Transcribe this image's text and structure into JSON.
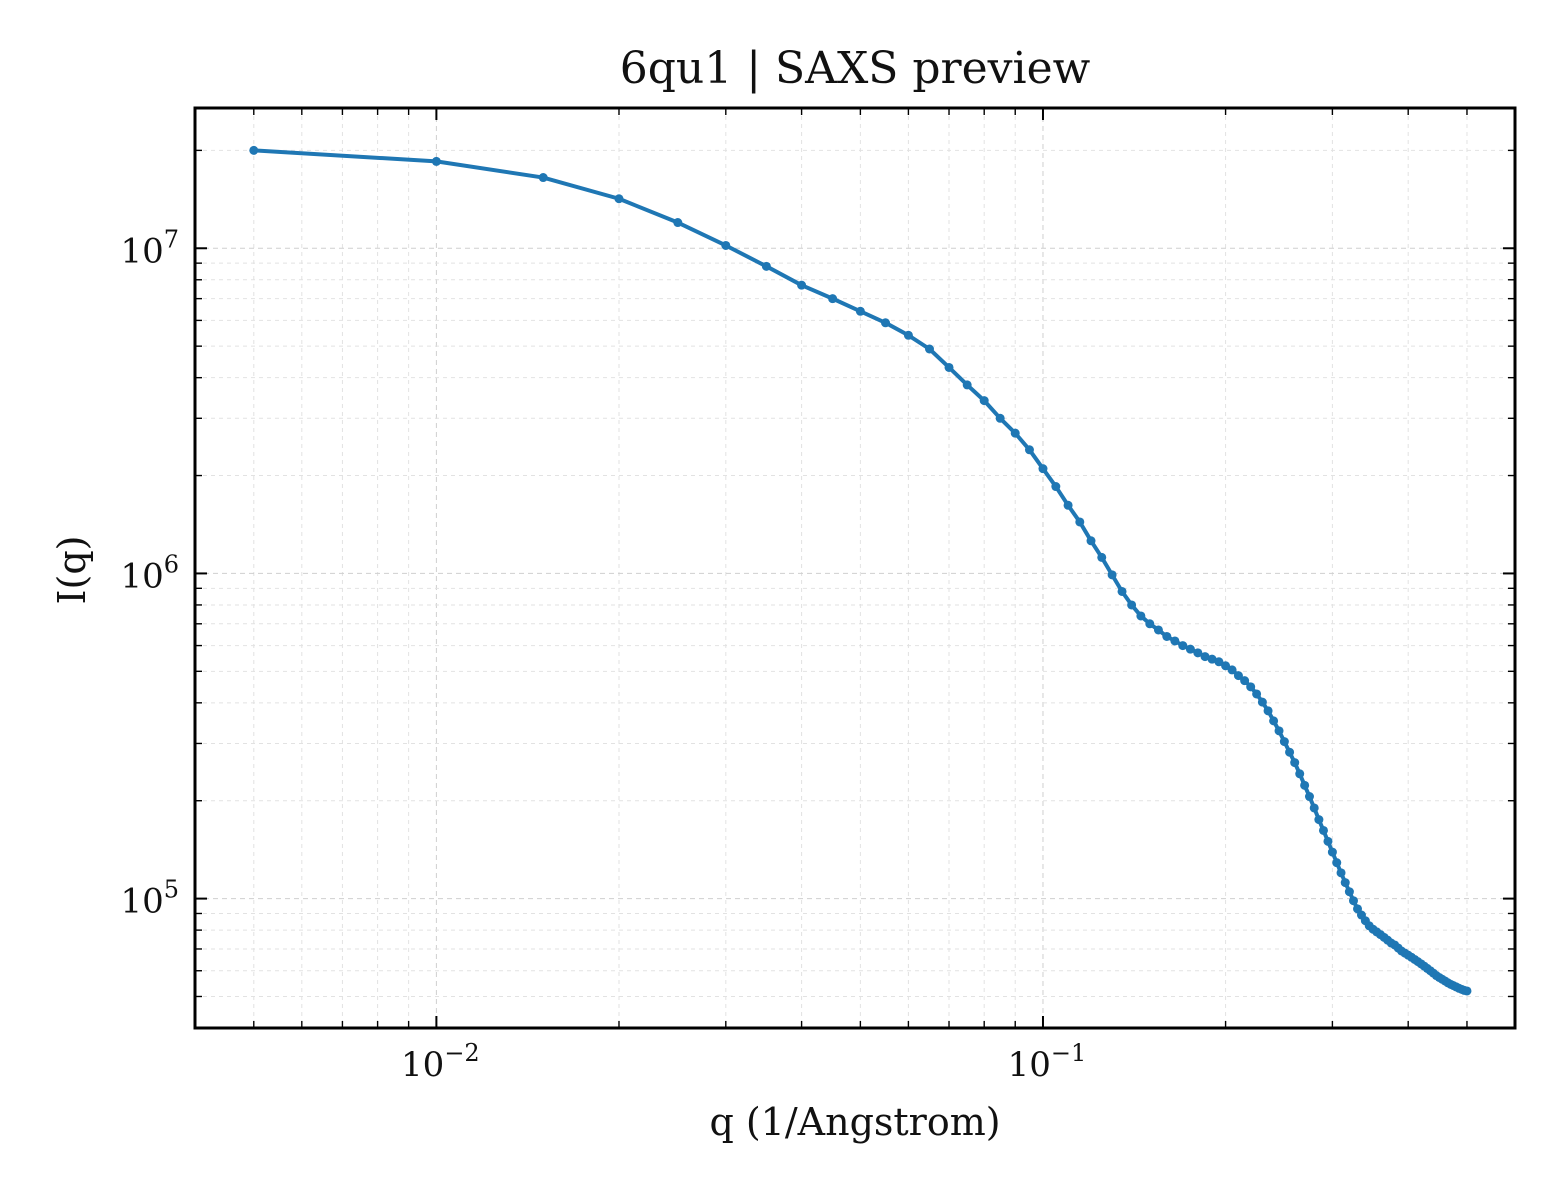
{
  "chart_data": {
    "type": "line",
    "title": "6qu1 | SAXS preview",
    "xlabel": "q (1/Angstrom)",
    "ylabel": "I(q)",
    "xscale": "log",
    "yscale": "log",
    "xlim": [
      0.004,
      0.6
    ],
    "ylim": [
      40000,
      27000000
    ],
    "grid": true,
    "color": "#1f77b4",
    "x_ticks": [
      {
        "value": 0.01,
        "base": "10",
        "exp": "−2"
      },
      {
        "value": 0.1,
        "base": "10",
        "exp": "−1"
      }
    ],
    "y_ticks": [
      {
        "value": 100000,
        "base": "10",
        "exp": "5"
      },
      {
        "value": 1000000,
        "base": "10",
        "exp": "6"
      },
      {
        "value": 10000000,
        "base": "10",
        "exp": "7"
      }
    ],
    "series": [
      {
        "x": [
          0.005,
          0.01,
          0.015,
          0.02,
          0.025,
          0.03,
          0.035,
          0.04,
          0.045,
          0.05,
          0.055,
          0.06,
          0.065,
          0.07,
          0.075,
          0.08,
          0.085,
          0.09,
          0.095,
          0.1,
          0.105,
          0.11,
          0.115,
          0.12,
          0.125,
          0.13,
          0.135,
          0.14,
          0.145,
          0.15,
          0.155,
          0.16,
          0.165,
          0.17,
          0.175,
          0.18,
          0.185,
          0.19,
          0.195,
          0.2,
          0.205,
          0.21,
          0.215,
          0.22,
          0.225,
          0.23,
          0.235,
          0.24,
          0.245,
          0.25,
          0.255,
          0.26,
          0.265,
          0.27,
          0.275,
          0.28,
          0.285,
          0.29,
          0.295,
          0.3,
          0.305,
          0.31,
          0.315,
          0.32,
          0.325,
          0.33,
          0.335,
          0.34,
          0.345,
          0.35,
          0.355,
          0.36,
          0.365,
          0.37,
          0.375,
          0.38,
          0.385,
          0.39,
          0.395,
          0.4,
          0.405,
          0.41,
          0.415,
          0.42,
          0.425,
          0.43,
          0.435,
          0.44,
          0.445,
          0.45,
          0.455,
          0.46,
          0.465,
          0.47,
          0.475,
          0.48,
          0.485,
          0.49,
          0.495,
          0.5
        ],
        "y": [
          20000000,
          18500000,
          16500000,
          14200000,
          12000000,
          10200000,
          8800000,
          7700000,
          7000000,
          6400000,
          5900000,
          5400000,
          4900000,
          4300000,
          3800000,
          3400000,
          3000000,
          2700000,
          2400000,
          2100000,
          1850000,
          1620000,
          1440000,
          1260000,
          1120000,
          990000,
          880000,
          800000,
          740000,
          700000,
          670000,
          640000,
          620000,
          600000,
          585000,
          570000,
          555000,
          545000,
          535000,
          520000,
          505000,
          485000,
          468000,
          448000,
          426000,
          402000,
          378000,
          352000,
          328000,
          304000,
          282000,
          262000,
          242000,
          223000,
          206000,
          190000,
          175000,
          162000,
          150000,
          139000,
          129000,
          120000,
          112000,
          105000,
          98500,
          93000,
          89000,
          85500,
          82500,
          80500,
          79000,
          77500,
          76000,
          74500,
          73000,
          72000,
          70500,
          69000,
          68000,
          67000,
          66000,
          65000,
          64000,
          63000,
          62000,
          61000,
          60000,
          59000,
          58000,
          57200,
          56500,
          55800,
          55100,
          54500,
          54000,
          53500,
          53000,
          52600,
          52200,
          52000
        ]
      }
    ]
  }
}
